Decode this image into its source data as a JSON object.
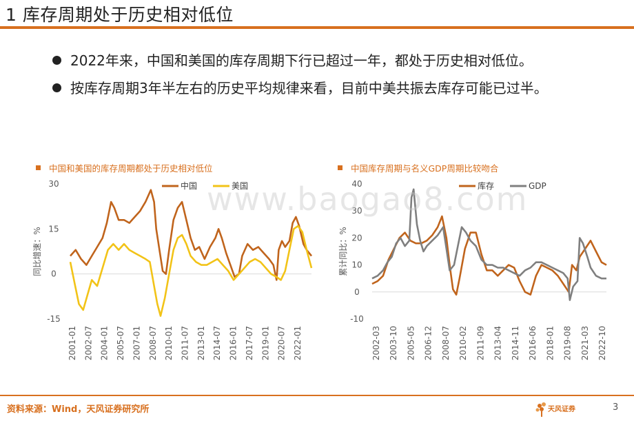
{
  "title": "1 库存周期处于历史相对低位",
  "bullets": [
    "2022年来，中国和美国的库存周期下行已超过一年，都处于历史相对低位。",
    "按库存周期3年半左右的历史平均规律来看，目前中美共振去库存可能已过半。"
  ],
  "watermark": "www.baogao8.com",
  "footer": {
    "source": "资料来源：Wind，天风证券研究所",
    "logo_text": "天风证券",
    "page_number": "3"
  },
  "chart_data": [
    {
      "type": "line",
      "title": "中国和美国的库存周期都处于历史相对低位",
      "ylabel": "同比增速：%",
      "xlabel": "",
      "ylim": [
        -15,
        30
      ],
      "yticks": [
        "30",
        "15",
        "0",
        "-15"
      ],
      "x_tick_labels": [
        "2001-01",
        "2002-07",
        "2004-01",
        "2005-07",
        "2007-01",
        "2008-07",
        "2010-01",
        "2011-07",
        "2013-01",
        "2014-07",
        "2016-01",
        "2017-07",
        "2019-01",
        "2020-07",
        "2022-01"
      ],
      "x_range": [
        2001.0,
        2023.45
      ],
      "series": [
        {
          "name": "中国",
          "color": "#c0641c",
          "points": [
            [
              2001.0,
              6
            ],
            [
              2001.5,
              8
            ],
            [
              2002.0,
              5
            ],
            [
              2002.5,
              3
            ],
            [
              2003.0,
              6
            ],
            [
              2003.5,
              9
            ],
            [
              2004.0,
              12
            ],
            [
              2004.4,
              17
            ],
            [
              2004.8,
              24
            ],
            [
              2005.1,
              22
            ],
            [
              2005.5,
              18
            ],
            [
              2006.0,
              18
            ],
            [
              2006.5,
              17
            ],
            [
              2007.0,
              19
            ],
            [
              2007.5,
              21
            ],
            [
              2008.0,
              24
            ],
            [
              2008.5,
              28
            ],
            [
              2008.8,
              24
            ],
            [
              2009.0,
              15
            ],
            [
              2009.3,
              8
            ],
            [
              2009.6,
              1
            ],
            [
              2009.9,
              0
            ],
            [
              2010.2,
              8
            ],
            [
              2010.6,
              18
            ],
            [
              2011.0,
              22
            ],
            [
              2011.4,
              24
            ],
            [
              2011.8,
              18
            ],
            [
              2012.2,
              12
            ],
            [
              2012.6,
              8
            ],
            [
              2013.0,
              9
            ],
            [
              2013.5,
              5
            ],
            [
              2014.0,
              9
            ],
            [
              2014.5,
              12
            ],
            [
              2014.8,
              15
            ],
            [
              2015.1,
              12
            ],
            [
              2015.5,
              7
            ],
            [
              2015.9,
              3
            ],
            [
              2016.3,
              -1
            ],
            [
              2016.7,
              0
            ],
            [
              2017.0,
              6
            ],
            [
              2017.5,
              10
            ],
            [
              2018.0,
              8
            ],
            [
              2018.5,
              9
            ],
            [
              2019.0,
              7
            ],
            [
              2019.5,
              5
            ],
            [
              2019.9,
              3
            ],
            [
              2020.2,
              -2
            ],
            [
              2020.4,
              8
            ],
            [
              2020.7,
              11
            ],
            [
              2021.0,
              9
            ],
            [
              2021.4,
              11
            ],
            [
              2021.7,
              17
            ],
            [
              2022.0,
              19
            ],
            [
              2022.3,
              16
            ],
            [
              2022.7,
              10
            ],
            [
              2023.0,
              8
            ],
            [
              2023.45,
              6
            ]
          ]
        },
        {
          "name": "美国",
          "color": "#f2c317",
          "points": [
            [
              2001.0,
              4
            ],
            [
              2001.4,
              -3
            ],
            [
              2001.8,
              -10
            ],
            [
              2002.2,
              -12
            ],
            [
              2002.6,
              -7
            ],
            [
              2003.0,
              -2
            ],
            [
              2003.5,
              -4
            ],
            [
              2004.0,
              2
            ],
            [
              2004.5,
              8
            ],
            [
              2005.0,
              10
            ],
            [
              2005.5,
              8
            ],
            [
              2006.0,
              10
            ],
            [
              2006.5,
              8
            ],
            [
              2007.0,
              7
            ],
            [
              2007.5,
              6
            ],
            [
              2008.0,
              5
            ],
            [
              2008.4,
              4
            ],
            [
              2008.8,
              -4
            ],
            [
              2009.1,
              -10
            ],
            [
              2009.4,
              -14
            ],
            [
              2009.8,
              -8
            ],
            [
              2010.2,
              0
            ],
            [
              2010.6,
              8
            ],
            [
              2011.0,
              12
            ],
            [
              2011.4,
              13
            ],
            [
              2011.8,
              10
            ],
            [
              2012.2,
              6
            ],
            [
              2012.7,
              4
            ],
            [
              2013.2,
              3
            ],
            [
              2013.7,
              3
            ],
            [
              2014.2,
              4
            ],
            [
              2014.7,
              5
            ],
            [
              2015.2,
              3
            ],
            [
              2015.7,
              1
            ],
            [
              2016.2,
              -2
            ],
            [
              2016.7,
              0
            ],
            [
              2017.2,
              2
            ],
            [
              2017.7,
              4
            ],
            [
              2018.2,
              5
            ],
            [
              2018.7,
              4
            ],
            [
              2019.2,
              2
            ],
            [
              2019.7,
              0
            ],
            [
              2020.2,
              -1
            ],
            [
              2020.6,
              -2
            ],
            [
              2021.0,
              1
            ],
            [
              2021.4,
              8
            ],
            [
              2021.8,
              15
            ],
            [
              2022.2,
              16
            ],
            [
              2022.6,
              14
            ],
            [
              2023.0,
              8
            ],
            [
              2023.45,
              2
            ]
          ]
        }
      ]
    },
    {
      "type": "line",
      "title": "中国库存周期与名义GDP周期比较吻合",
      "ylabel": "累计同比：%",
      "xlabel": "",
      "ylim": [
        -10,
        40
      ],
      "yticks": [
        "40",
        "30",
        "20",
        "10",
        "0",
        "-10"
      ],
      "x_tick_labels": [
        "2002-03",
        "2003-10",
        "2005-05",
        "2006-12",
        "2008-07",
        "2010-02",
        "2011-09",
        "2013-04",
        "2014-11",
        "2016-06",
        "2018-01",
        "2019-08",
        "2021-03",
        "2022-10"
      ],
      "x_range": [
        2002.0,
        2023.45
      ],
      "series": [
        {
          "name": "库存",
          "color": "#c0641c",
          "points": [
            [
              2002.0,
              3
            ],
            [
              2002.5,
              4
            ],
            [
              2003.0,
              6
            ],
            [
              2003.5,
              12
            ],
            [
              2004.0,
              16
            ],
            [
              2004.5,
              20
            ],
            [
              2005.0,
              22
            ],
            [
              2005.5,
              19
            ],
            [
              2006.0,
              18
            ],
            [
              2006.5,
              18
            ],
            [
              2007.0,
              19
            ],
            [
              2007.5,
              21
            ],
            [
              2008.0,
              24
            ],
            [
              2008.4,
              28
            ],
            [
              2008.8,
              20
            ],
            [
              2009.1,
              10
            ],
            [
              2009.4,
              1
            ],
            [
              2009.7,
              -1
            ],
            [
              2010.0,
              5
            ],
            [
              2010.5,
              16
            ],
            [
              2011.0,
              22
            ],
            [
              2011.5,
              22
            ],
            [
              2012.0,
              14
            ],
            [
              2012.5,
              8
            ],
            [
              2013.0,
              8
            ],
            [
              2013.5,
              6
            ],
            [
              2014.0,
              8
            ],
            [
              2014.5,
              10
            ],
            [
              2015.0,
              9
            ],
            [
              2015.5,
              4
            ],
            [
              2016.0,
              0
            ],
            [
              2016.5,
              -1
            ],
            [
              2017.0,
              6
            ],
            [
              2017.5,
              10
            ],
            [
              2018.0,
              9
            ],
            [
              2018.5,
              8
            ],
            [
              2019.0,
              6
            ],
            [
              2019.5,
              3
            ],
            [
              2020.0,
              0
            ],
            [
              2020.3,
              10
            ],
            [
              2020.7,
              8
            ],
            [
              2021.0,
              13
            ],
            [
              2021.5,
              16
            ],
            [
              2022.0,
              19
            ],
            [
              2022.5,
              15
            ],
            [
              2023.0,
              11
            ],
            [
              2023.45,
              10
            ]
          ]
        },
        {
          "name": "GDP",
          "color": "#7f7f7f",
          "points": [
            [
              2002.0,
              5
            ],
            [
              2002.5,
              6
            ],
            [
              2003.0,
              8
            ],
            [
              2003.4,
              11
            ],
            [
              2003.8,
              13
            ],
            [
              2004.2,
              18
            ],
            [
              2004.6,
              20
            ],
            [
              2005.0,
              17
            ],
            [
              2005.4,
              19
            ],
            [
              2005.6,
              35
            ],
            [
              2005.8,
              38
            ],
            [
              2006.1,
              25
            ],
            [
              2006.4,
              19
            ],
            [
              2006.7,
              15
            ],
            [
              2007.0,
              17
            ],
            [
              2007.5,
              19
            ],
            [
              2008.0,
              21
            ],
            [
              2008.5,
              24
            ],
            [
              2008.8,
              16
            ],
            [
              2009.1,
              8
            ],
            [
              2009.5,
              10
            ],
            [
              2009.9,
              18
            ],
            [
              2010.2,
              24
            ],
            [
              2010.6,
              22
            ],
            [
              2011.0,
              19
            ],
            [
              2011.5,
              17
            ],
            [
              2012.0,
              12
            ],
            [
              2012.5,
              10
            ],
            [
              2013.0,
              10
            ],
            [
              2013.5,
              9
            ],
            [
              2014.0,
              9
            ],
            [
              2014.5,
              8
            ],
            [
              2015.0,
              7
            ],
            [
              2015.5,
              6
            ],
            [
              2016.0,
              8
            ],
            [
              2016.5,
              9
            ],
            [
              2017.0,
              11
            ],
            [
              2017.5,
              11
            ],
            [
              2018.0,
              10
            ],
            [
              2018.5,
              9
            ],
            [
              2019.0,
              8
            ],
            [
              2019.5,
              7
            ],
            [
              2019.9,
              5
            ],
            [
              2020.1,
              -3
            ],
            [
              2020.4,
              2
            ],
            [
              2020.8,
              4
            ],
            [
              2021.0,
              20
            ],
            [
              2021.3,
              18
            ],
            [
              2021.7,
              13
            ],
            [
              2022.0,
              9
            ],
            [
              2022.5,
              6
            ],
            [
              2023.0,
              5
            ],
            [
              2023.45,
              5
            ]
          ]
        }
      ]
    }
  ]
}
